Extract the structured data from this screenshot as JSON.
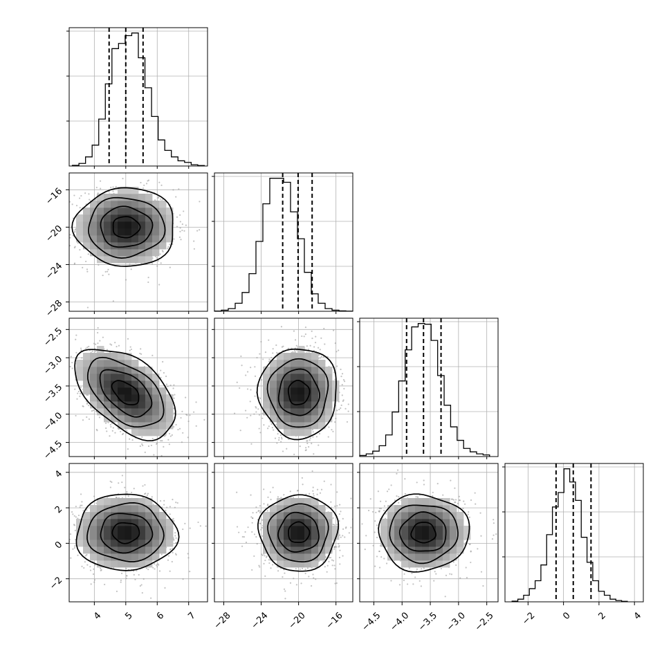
{
  "colors": {
    "frame": "#000000",
    "grid": "#b0b0b0",
    "density_light": "#f2f2f2",
    "density_dark": "#151515",
    "samples": "#9a9a9a"
  },
  "chart_data": {
    "type": "corner",
    "grid": true,
    "parameters": [
      {
        "name": "",
        "mean": 5.0,
        "std": 0.78,
        "hist_range": [
          3.3,
          7.5
        ],
        "axis_range": [
          3.2,
          7.6
        ],
        "ticks": [
          "4",
          "5",
          "6",
          "7"
        ],
        "tick_values": [
          4,
          5,
          6,
          7
        ],
        "quantiles": [
          4.47,
          5.0,
          5.55
        ]
      },
      {
        "name": "",
        "mean": -20.0,
        "std": 2.05,
        "hist_range": [
          -29.0,
          -14.2
        ],
        "axis_range": [
          -29.0,
          -14.2
        ],
        "ticks": [
          "−28",
          "−24",
          "−20",
          "−16"
        ],
        "tick_values": [
          -28,
          -24,
          -20,
          -16
        ],
        "quantiles": [
          -21.7,
          -20.05,
          -18.55
        ]
      },
      {
        "name": "",
        "mean": -3.62,
        "std": 0.39,
        "hist_range": [
          -4.75,
          -2.45
        ],
        "axis_range": [
          -4.75,
          -2.3
        ],
        "ticks": [
          "−4.5",
          "−4.0",
          "−3.5",
          "−3.0",
          "−2.5"
        ],
        "tick_values": [
          -4.5,
          -4.0,
          -3.5,
          -3.0,
          -2.5
        ],
        "quantiles": [
          -3.92,
          -3.62,
          -3.31
        ]
      },
      {
        "name": "",
        "mean": 0.6,
        "std": 1.05,
        "hist_range": [
          -2.9,
          3.6
        ],
        "axis_range": [
          -3.3,
          4.5
        ],
        "ticks": [
          "−2",
          "0",
          "2",
          "4"
        ],
        "tick_values": [
          -2,
          0,
          2,
          4
        ],
        "quantiles": [
          -0.42,
          0.55,
          1.55
        ]
      }
    ],
    "histograms": [
      {
        "param": 0,
        "bins": 20,
        "counts": [
          5,
          20,
          70,
          160,
          360,
          630,
          900,
          940,
          1000,
          1020,
          830,
          600,
          380,
          200,
          120,
          70,
          40,
          28,
          10,
          4
        ]
      },
      {
        "param": 1,
        "bins": 20,
        "counts": [
          2,
          8,
          20,
          60,
          140,
          280,
          520,
          800,
          990,
          990,
          960,
          740,
          540,
          290,
          130,
          60,
          20,
          8,
          3,
          1
        ]
      },
      {
        "param": 2,
        "bins": 20,
        "counts": [
          8,
          20,
          40,
          80,
          160,
          330,
          560,
          790,
          960,
          985,
          980,
          860,
          600,
          380,
          220,
          120,
          60,
          35,
          20,
          12
        ]
      },
      {
        "param": 3,
        "bins": 20,
        "counts": [
          5,
          20,
          50,
          100,
          160,
          280,
          510,
          720,
          830,
          1010,
          910,
          770,
          490,
          300,
          160,
          80,
          50,
          20,
          10,
          4
        ]
      }
    ],
    "pairs": [
      {
        "x": 0,
        "y": 1,
        "correlation": 0.0
      },
      {
        "x": 0,
        "y": 2,
        "correlation": -0.5
      },
      {
        "x": 1,
        "y": 2,
        "correlation": 0.0
      },
      {
        "x": 0,
        "y": 3,
        "correlation": 0.0
      },
      {
        "x": 1,
        "y": 3,
        "correlation": 0.0
      },
      {
        "x": 2,
        "y": 3,
        "correlation": 0.0
      }
    ],
    "contour_sigma_levels": [
      0.5,
      1.0,
      1.5,
      2.0
    ]
  }
}
